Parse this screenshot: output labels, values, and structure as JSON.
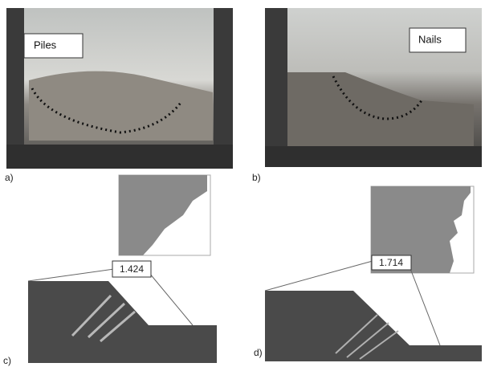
{
  "photos": [
    {
      "label": "a)",
      "tag": "Piles"
    },
    {
      "label": "b)",
      "tag": "Nails"
    }
  ],
  "models": [
    {
      "label": "c)",
      "factor": 1.424
    },
    {
      "label": "d)",
      "factor": 1.714
    }
  ]
}
